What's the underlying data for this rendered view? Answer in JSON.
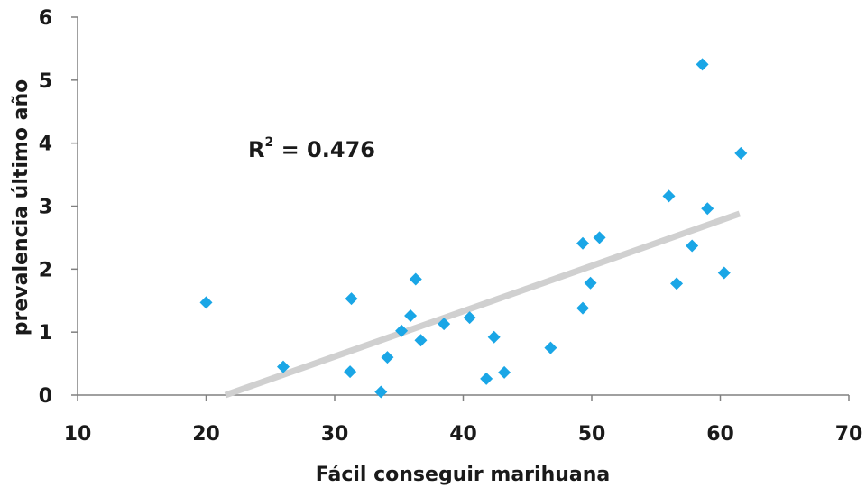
{
  "chart_data": {
    "type": "scatter",
    "xlabel": "Fácil conseguir marihuana",
    "ylabel": "prevalencia último año",
    "xlim": [
      10,
      70
    ],
    "ylim": [
      0,
      6
    ],
    "xticks": [
      "10",
      "20",
      "30",
      "40",
      "50",
      "60",
      "70"
    ],
    "yticks": [
      "0",
      "1",
      "2",
      "3",
      "4",
      "5",
      "6"
    ],
    "grid": false,
    "marker_color": "#1aa6e6",
    "trendline_color": "#d0d0d0",
    "annotation": {
      "base": "R",
      "sup": "2",
      "text": " = 0.476"
    },
    "trendline": {
      "x": [
        21.5,
        61.5
      ],
      "y": [
        0.0,
        2.88
      ]
    },
    "points": [
      {
        "x": 20.0,
        "y": 1.47
      },
      {
        "x": 26.0,
        "y": 0.45
      },
      {
        "x": 31.3,
        "y": 1.53
      },
      {
        "x": 31.2,
        "y": 0.37
      },
      {
        "x": 33.6,
        "y": 0.05
      },
      {
        "x": 34.1,
        "y": 0.6
      },
      {
        "x": 35.2,
        "y": 1.02
      },
      {
        "x": 35.9,
        "y": 1.26
      },
      {
        "x": 36.3,
        "y": 1.84
      },
      {
        "x": 36.7,
        "y": 0.87
      },
      {
        "x": 38.5,
        "y": 1.13
      },
      {
        "x": 40.5,
        "y": 1.23
      },
      {
        "x": 41.8,
        "y": 0.26
      },
      {
        "x": 42.4,
        "y": 0.92
      },
      {
        "x": 43.2,
        "y": 0.36
      },
      {
        "x": 46.8,
        "y": 0.75
      },
      {
        "x": 49.3,
        "y": 2.41
      },
      {
        "x": 49.3,
        "y": 1.38
      },
      {
        "x": 49.9,
        "y": 1.78
      },
      {
        "x": 50.6,
        "y": 2.5
      },
      {
        "x": 56.0,
        "y": 3.16
      },
      {
        "x": 56.6,
        "y": 1.77
      },
      {
        "x": 57.8,
        "y": 2.37
      },
      {
        "x": 58.6,
        "y": 5.25
      },
      {
        "x": 59.0,
        "y": 2.96
      },
      {
        "x": 60.3,
        "y": 1.94
      },
      {
        "x": 61.6,
        "y": 3.84
      }
    ]
  }
}
